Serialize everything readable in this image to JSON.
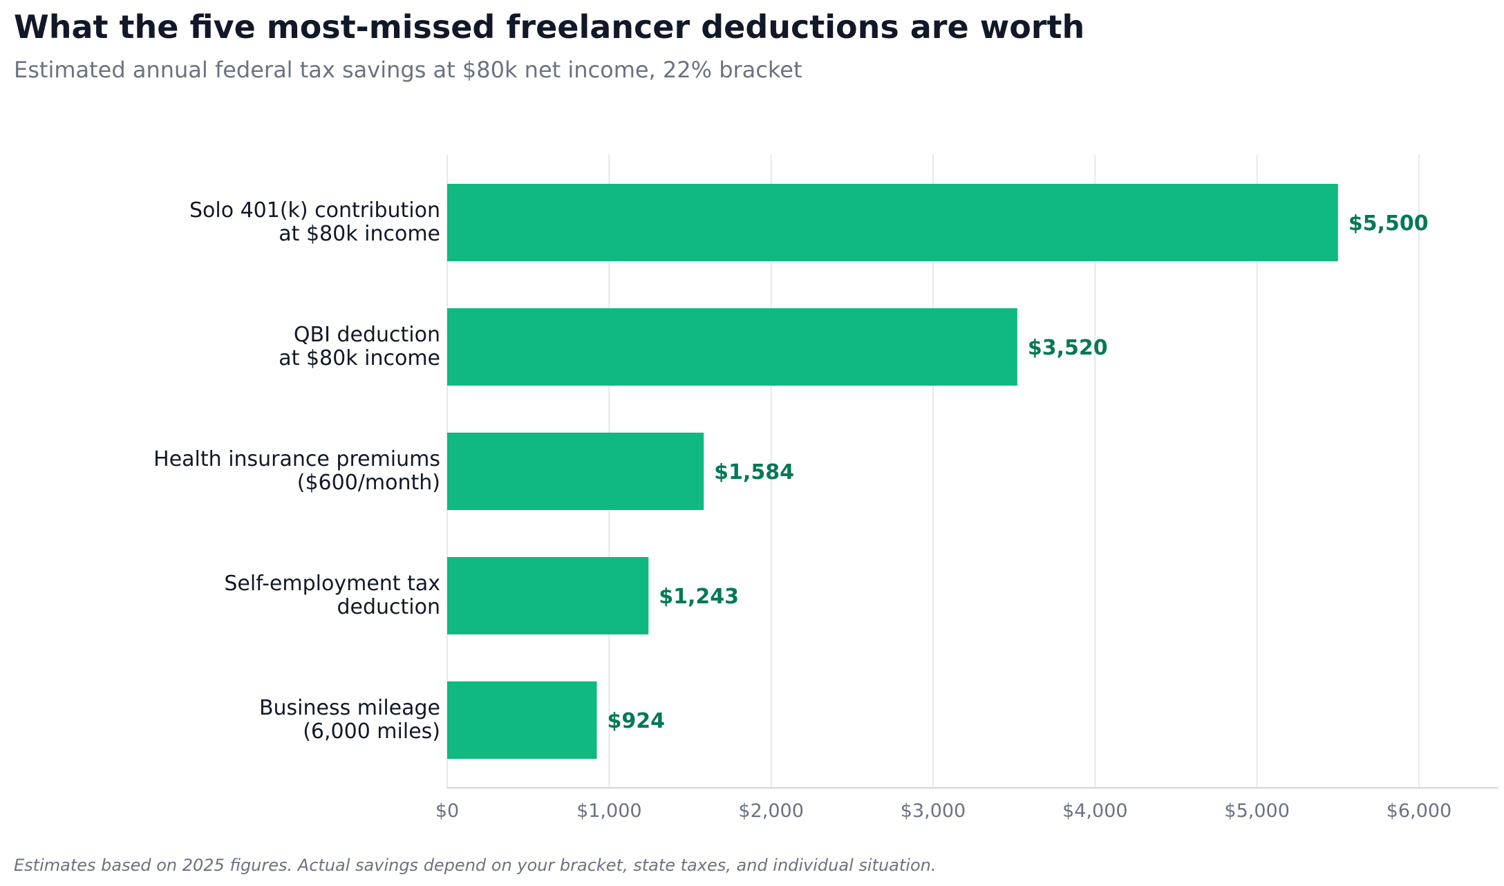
{
  "chart_data": {
    "type": "bar",
    "orientation": "horizontal",
    "title": "What the five most-missed freelancer deductions are worth",
    "subtitle": "Estimated annual federal tax savings at $80k net income, 22% bracket",
    "footnote": "Estimates based on 2025 figures. Actual savings depend on your bracket, state taxes, and individual situation.",
    "categories": [
      [
        "Solo 401(k) contribution",
        "at $80k income"
      ],
      [
        "QBI deduction",
        "at $80k income"
      ],
      [
        "Health insurance premiums",
        "($600/month)"
      ],
      [
        "Self-employment tax",
        "deduction"
      ],
      [
        "Business mileage",
        "(6,000 miles)"
      ]
    ],
    "values": [
      5500,
      3520,
      1584,
      1243,
      924
    ],
    "value_labels": [
      "$5,500",
      "$3,520",
      "$1,584",
      "$1,243",
      "$924"
    ],
    "xlim": [
      0,
      6500
    ],
    "xticks": [
      0,
      1000,
      2000,
      3000,
      4000,
      5000,
      6000
    ],
    "xtick_labels": [
      "$0",
      "$1,000",
      "$2,000",
      "$3,000",
      "$4,000",
      "$5,000",
      "$6,000"
    ],
    "grid": "vertical",
    "colors": {
      "bar": "#10b981",
      "value_label": "#047857",
      "grid": "#e5e7eb",
      "axis": "#d1d5db"
    }
  }
}
